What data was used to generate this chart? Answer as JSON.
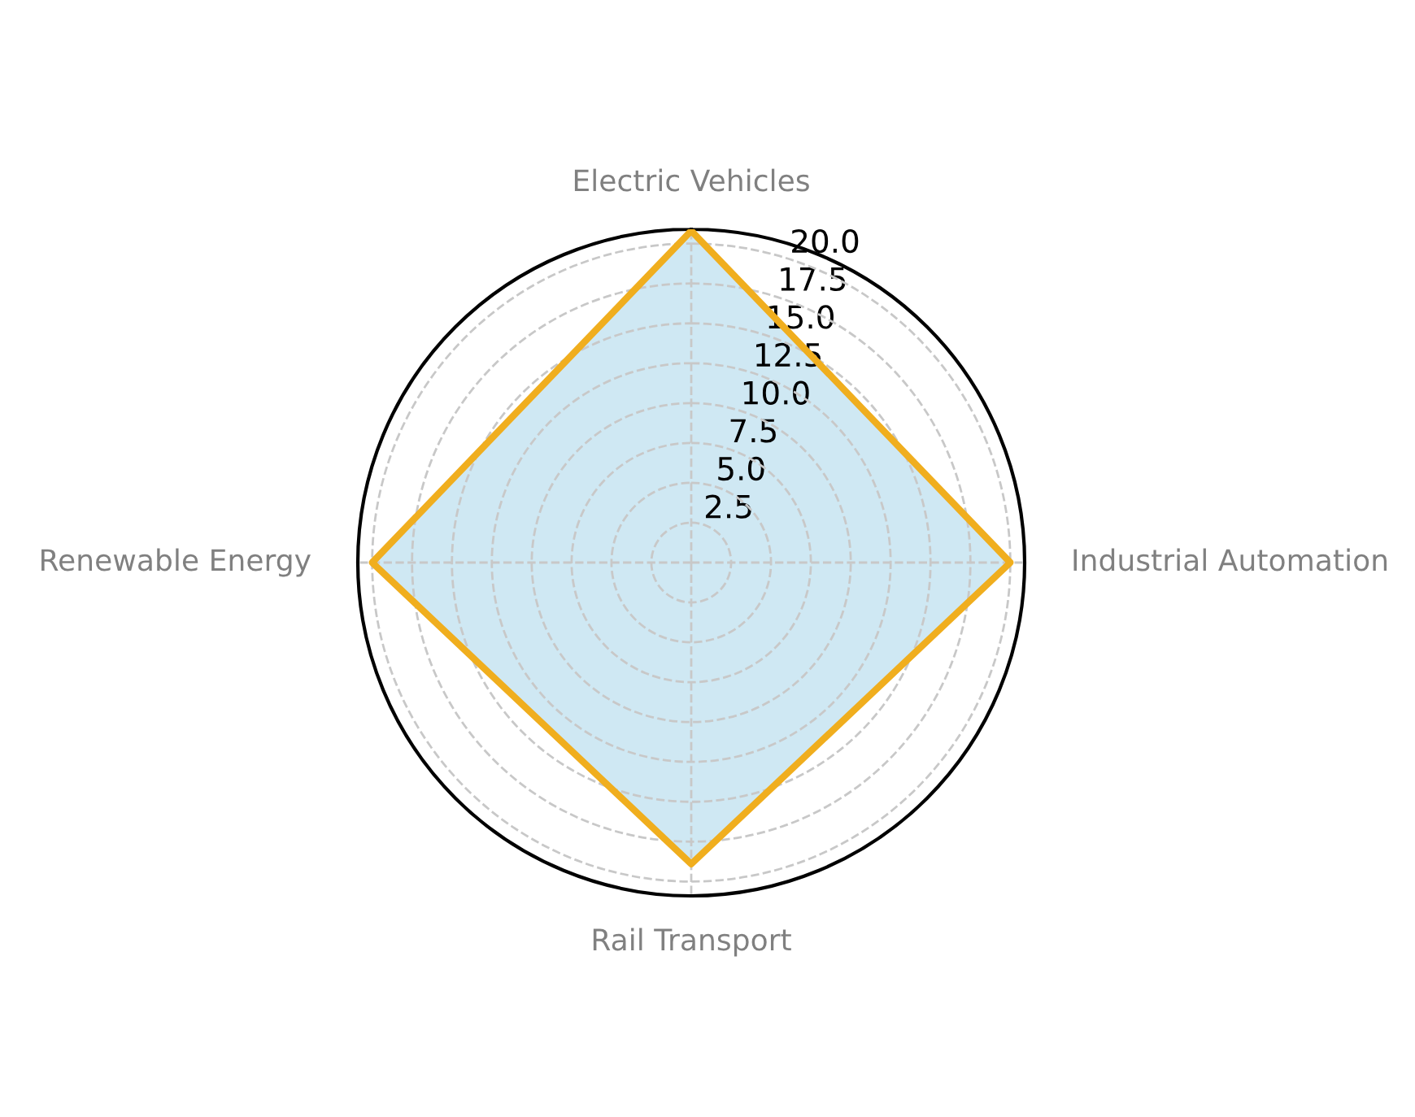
{
  "chart_data": {
    "type": "radar",
    "categories": [
      "Electric Vehicles",
      "Industrial Automation",
      "Rail Transport",
      "Renewable Energy"
    ],
    "series": [
      {
        "color": "#f0ae1e",
        "values": [
          20.8,
          20,
          18.9,
          20
        ]
      }
    ],
    "ylim": [
      0,
      20.9
    ],
    "yticks": [
      2.5,
      {
        "value": 5,
        "label": "5.0"
      },
      7.5,
      {
        "value": 10,
        "label": "10.0"
      },
      12.5,
      {
        "value": 15,
        "label": "15.0"
      },
      17.5,
      {
        "value": 20,
        "label": "20.0"
      }
    ],
    "grid": true,
    "line_style": "solid",
    "marker": "none"
  }
}
